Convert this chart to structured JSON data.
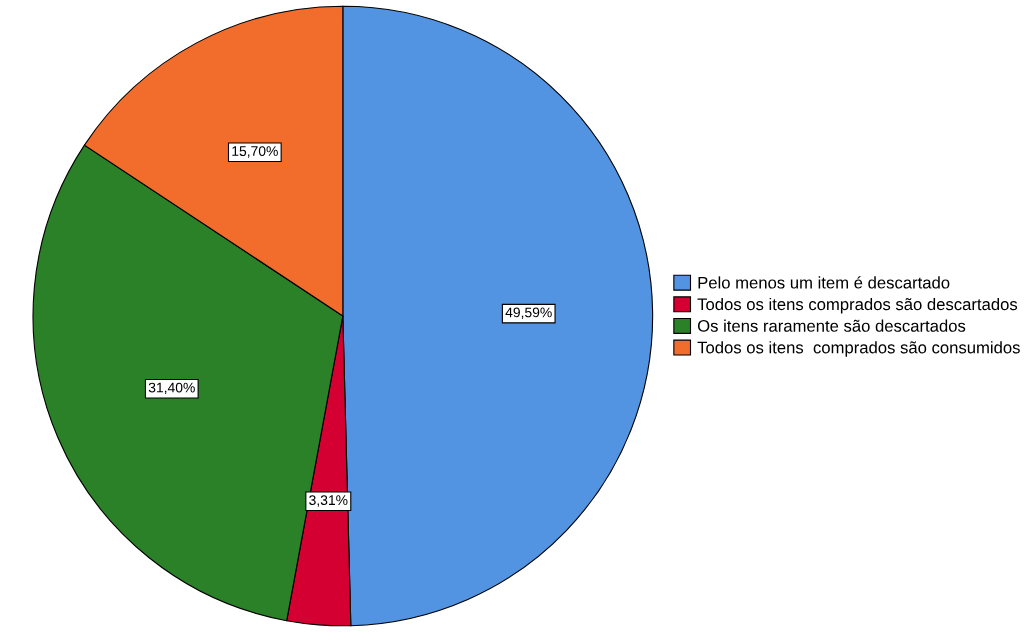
{
  "chart_data": {
    "type": "pie",
    "categories": [
      "Pelo menos um item é descartado",
      "Todos os itens comprados são descartados",
      "Os itens raramente são descartados",
      "Todos os itens  comprados são consumidos"
    ],
    "values": [
      49.59,
      3.31,
      31.4,
      15.7
    ],
    "value_labels": [
      "49,59%",
      "3,31%",
      "31,40%",
      "15,70%"
    ],
    "colors": [
      "#5294e2",
      "#d50032",
      "#2a8128",
      "#f26c2c"
    ],
    "legend": "right"
  }
}
